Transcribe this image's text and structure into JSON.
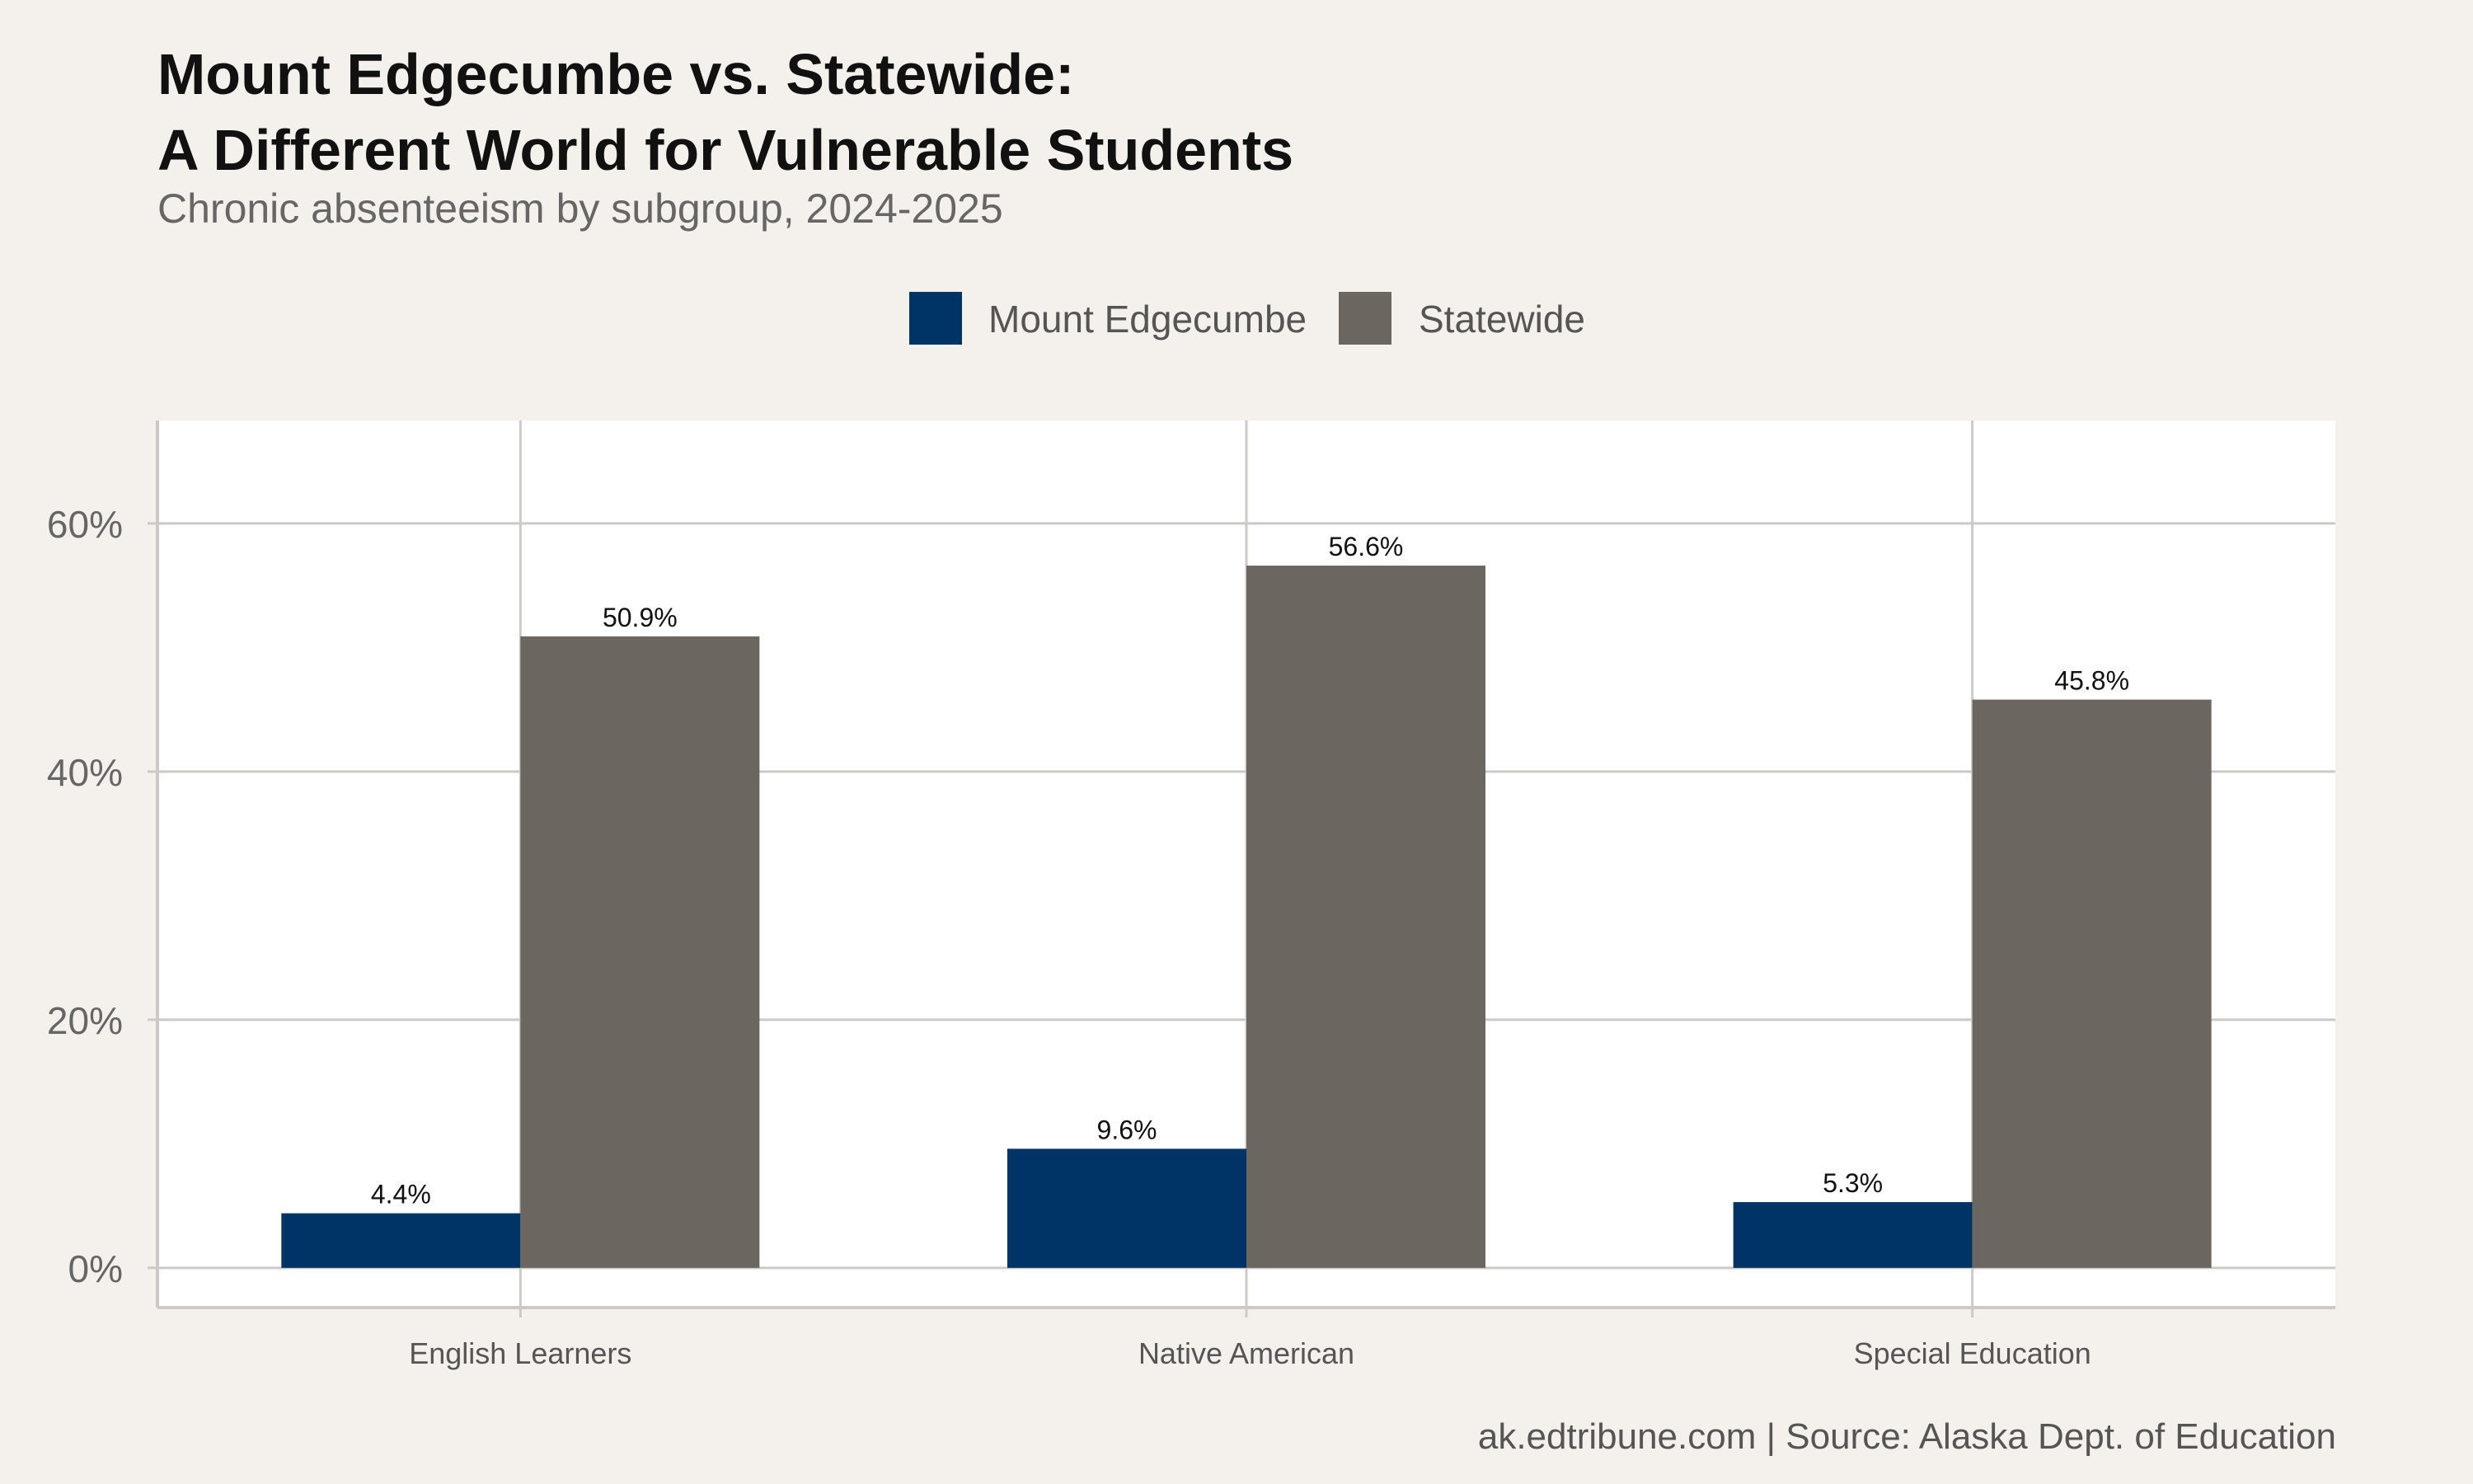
{
  "title_lines": [
    "Mount Edgecumbe vs. Statewide:",
    "A Different World for Vulnerable Students"
  ],
  "subtitle": "Chronic absenteeism by subgroup, 2024-2025",
  "caption": "ak.edtribune.com | Source: Alaska Dept. of Education",
  "colors": {
    "background": "#f4f1ec",
    "panel": "#ffffff",
    "grid": "#cccac6",
    "mount_edgecumbe": "#003366",
    "statewide": "#6b6660"
  },
  "chart_data": {
    "type": "bar",
    "title": "Mount Edgecumbe vs. Statewide: A Different World for Vulnerable Students",
    "subtitle": "Chronic absenteeism by subgroup, 2024-2025",
    "categories": [
      "English Learners",
      "Native American",
      "Special Education"
    ],
    "series": [
      {
        "name": "Mount Edgecumbe",
        "values": [
          4.4,
          9.6,
          5.3
        ],
        "labels": [
          "4.4%",
          "9.6%",
          "5.3%"
        ],
        "color": "#003366"
      },
      {
        "name": "Statewide",
        "values": [
          50.9,
          56.6,
          45.8
        ],
        "labels": [
          "50.9%",
          "56.6%",
          "45.8%"
        ],
        "color": "#6b6660"
      }
    ],
    "ylim": [
      -3.2,
      68.3
    ],
    "yticks": [
      0,
      20,
      40,
      60
    ],
    "ytick_labels": [
      "0%",
      "20%",
      "40%",
      "60%"
    ],
    "xlabel": "",
    "ylabel": "",
    "legend_position": "top",
    "grid": true
  }
}
